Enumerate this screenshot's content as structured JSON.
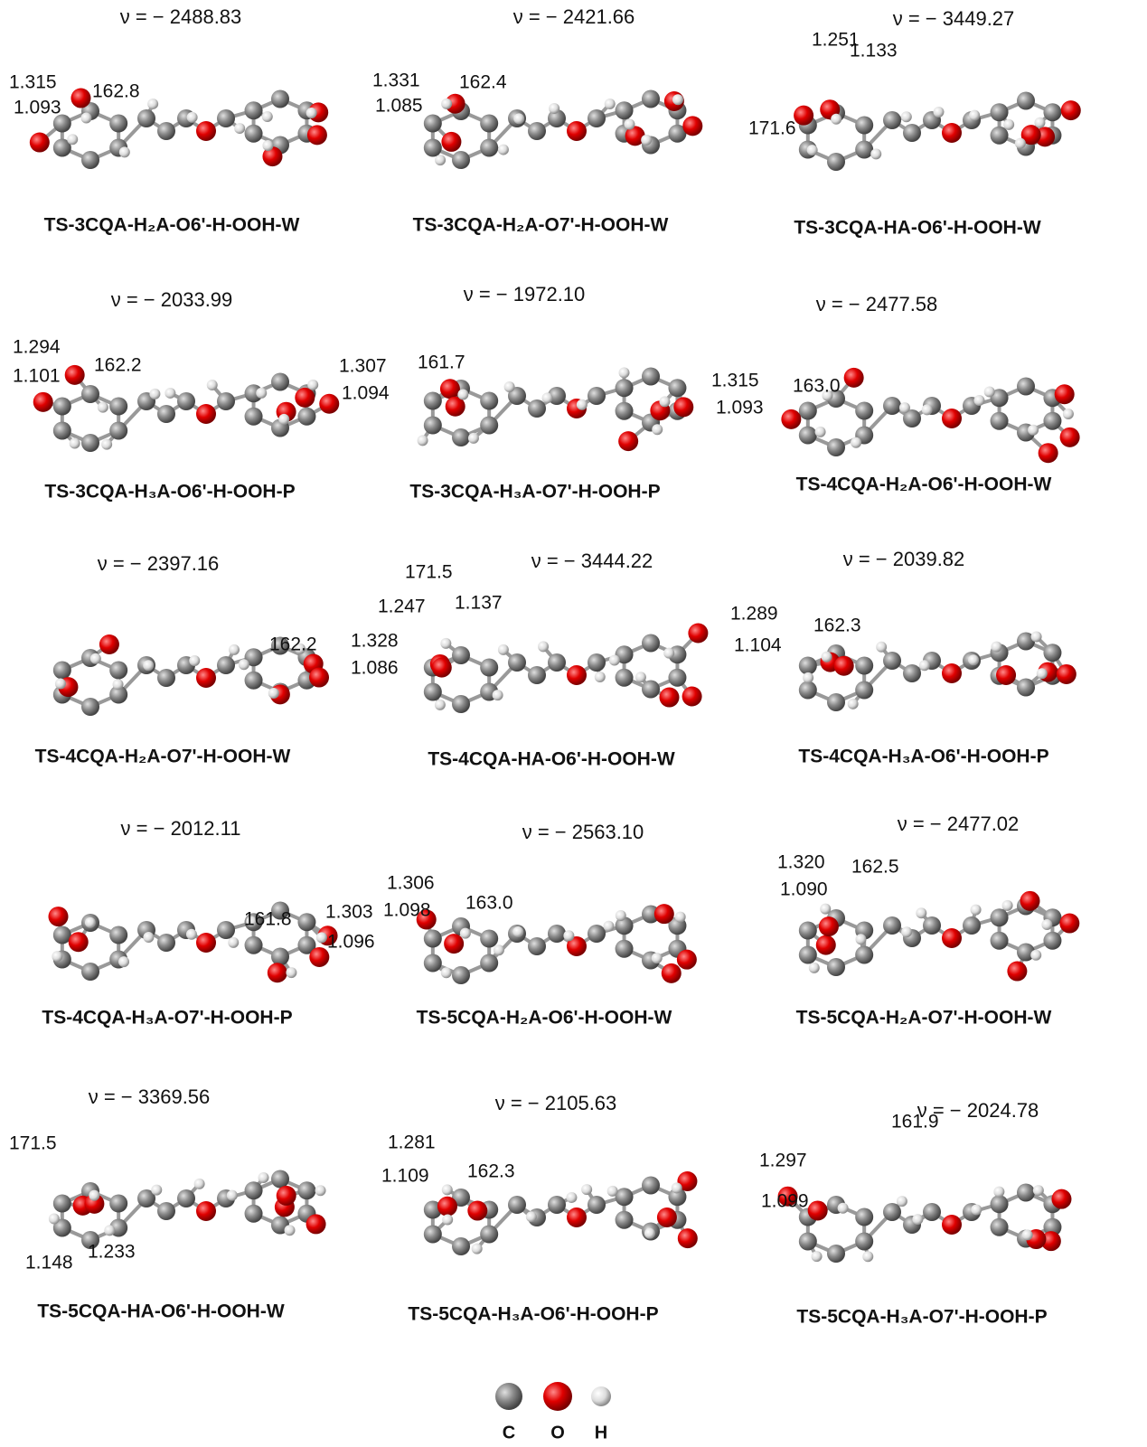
{
  "panels": [
    {
      "frequency": "ν = − 2488.83",
      "name": "TS-3CQA-H₂A-O6'-H-OOH-W",
      "labels": [
        "1.315",
        "1.093",
        "162.8"
      ]
    },
    {
      "frequency": "ν = − 2421.66",
      "name": "TS-3CQA-H₂A-O7'-H-OOH-W",
      "labels": [
        "1.331",
        "1.085",
        "162.4"
      ]
    },
    {
      "frequency": "ν = − 3449.27",
      "name": "TS-3CQA-HA-O6'-H-OOH-W",
      "labels": [
        "1.251",
        "1.133",
        "171.6"
      ]
    },
    {
      "frequency": "ν = − 2033.99",
      "name": "TS-3CQA-H₃A-O6'-H-OOH-P",
      "labels": [
        "1.294",
        "1.101",
        "162.2"
      ]
    },
    {
      "frequency": "ν = − 1972.10",
      "name": "TS-3CQA-H₃A-O7'-H-OOH-P",
      "labels": [
        "1.307",
        "1.094",
        "161.7"
      ]
    },
    {
      "frequency": "ν = − 2477.58",
      "name": "TS-4CQA-H₂A-O6'-H-OOH-W",
      "labels": [
        "1.315",
        "1.093",
        "163.0"
      ]
    },
    {
      "frequency": "ν = − 2397.16",
      "name": "TS-4CQA-H₂A-O7'-H-OOH-W",
      "labels": [
        "162.2",
        "1.328",
        "1.086"
      ]
    },
    {
      "frequency": "ν = − 3444.22",
      "name": "TS-4CQA-HA-O6'-H-OOH-W",
      "labels": [
        "171.5",
        "1.247",
        "1.137"
      ]
    },
    {
      "frequency": "ν = − 2039.82",
      "name": "TS-4CQA-H₃A-O6'-H-OOH-P",
      "labels": [
        "1.289",
        "1.104",
        "162.3"
      ]
    },
    {
      "frequency": "ν = − 2012.11",
      "name": "TS-4CQA-H₃A-O7'-H-OOH-P",
      "labels": [
        "161.8",
        "1.303",
        "1.096"
      ]
    },
    {
      "frequency": "ν = − 2563.10",
      "name": "TS-5CQA-H₂A-O6'-H-OOH-W",
      "labels": [
        "1.306",
        "1.098",
        "163.0"
      ]
    },
    {
      "frequency": "ν = − 2477.02",
      "name": "TS-5CQA-H₂A-O7'-H-OOH-W",
      "labels": [
        "1.320",
        "1.090",
        "162.5"
      ]
    },
    {
      "frequency": "ν = − 3369.56",
      "name": "TS-5CQA-HA-O6'-H-OOH-W",
      "labels": [
        "171.5",
        "1.148",
        "1.233"
      ]
    },
    {
      "frequency": "ν = − 2105.63",
      "name": "TS-5CQA-H₃A-O6'-H-OOH-P",
      "labels": [
        "1.281",
        "1.109",
        "162.3"
      ]
    },
    {
      "frequency": "ν = − 2024.78",
      "name": "TS-5CQA-H₃A-O7'-H-OOH-P",
      "labels": [
        "161.9",
        "1.297",
        "1.099"
      ]
    }
  ],
  "legend": [
    "C",
    "O",
    "H"
  ]
}
